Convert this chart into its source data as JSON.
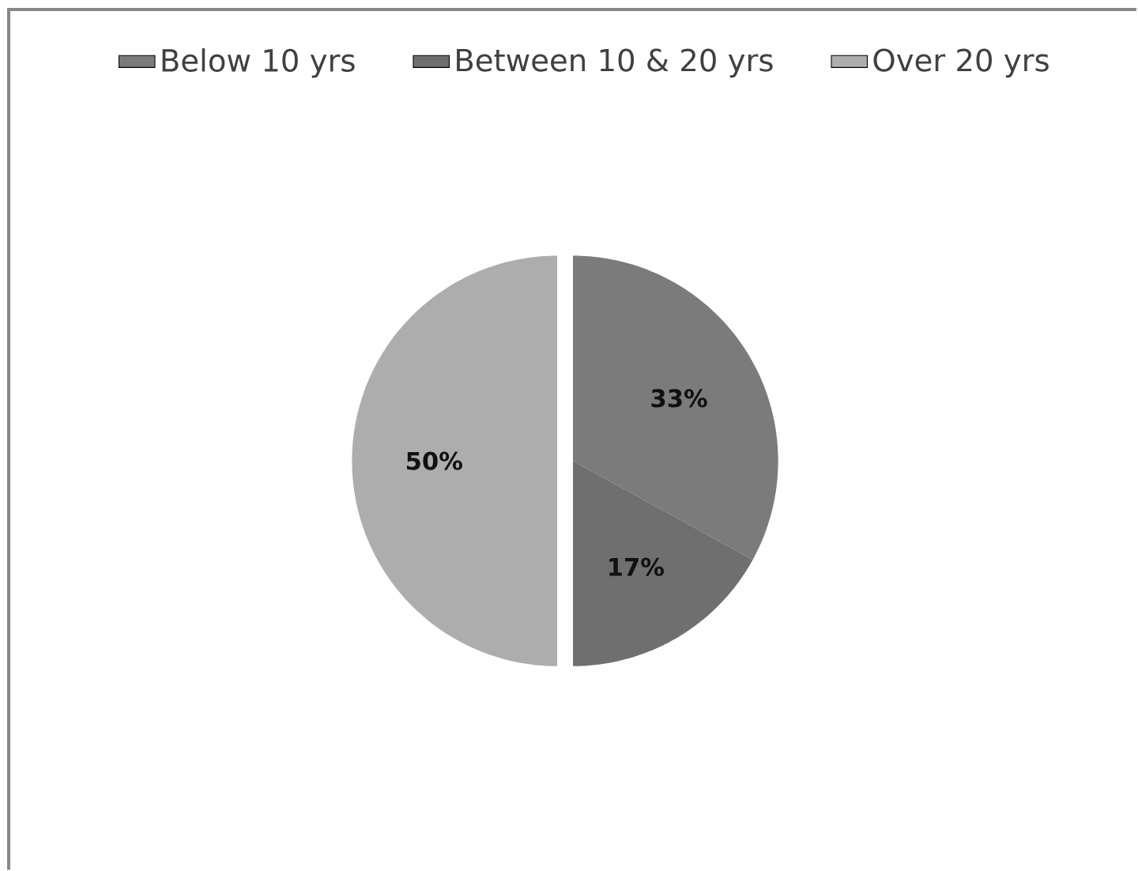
{
  "chart_data": {
    "type": "pie",
    "categories": [
      "Below 10 yrs",
      "Between 10 & 20 yrs",
      "Over 20 yrs"
    ],
    "values": [
      33,
      17,
      50
    ],
    "colors": [
      "#7b7b7b",
      "#6f6f6f",
      "#adadad"
    ],
    "value_labels": [
      "33%",
      "17%",
      "50%"
    ],
    "legend": "top"
  }
}
